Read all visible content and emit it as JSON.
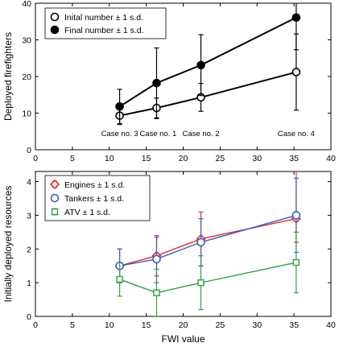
{
  "chart_data": [
    {
      "type": "line",
      "title": "",
      "xlabel": "",
      "ylabel": "Deployed firefighters",
      "xlim": [
        0,
        40
      ],
      "ylim": [
        0,
        40
      ],
      "xticks": [
        0,
        5,
        10,
        15,
        20,
        25,
        30,
        35,
        40
      ],
      "yticks": [
        0,
        10,
        20,
        30,
        40
      ],
      "grid": false,
      "legend_position": "top-left",
      "x": [
        11.4,
        16.4,
        22.4,
        35.3
      ],
      "series": [
        {
          "name": "Inital number ± 1 s.d.",
          "marker": "open-circle",
          "color": "#000000",
          "values": [
            9.3,
            11.4,
            14.3,
            21.2
          ],
          "err_low": [
            6.9,
            8.7,
            10.5,
            10.8
          ],
          "err_high": [
            11.7,
            14.1,
            18.1,
            31.6
          ]
        },
        {
          "name": "Final number ± 1 s.d.",
          "marker": "filled-circle",
          "color": "#000000",
          "values": [
            11.8,
            18.2,
            23.1,
            36.1
          ],
          "err_low": [
            7.1,
            8.5,
            14.8,
            27.3
          ],
          "err_high": [
            16.5,
            27.8,
            31.4,
            45
          ]
        }
      ],
      "annotations": [
        {
          "text": "Case no. 3",
          "x": 11.4,
          "y": 3.7
        },
        {
          "text": "Case no. 1",
          "x": 16.6,
          "y": 3.7
        },
        {
          "text": "Case no. 2",
          "x": 22.4,
          "y": 3.7
        },
        {
          "text": "Case no. 4",
          "x": 35.3,
          "y": 3.7
        }
      ]
    },
    {
      "type": "line",
      "title": "",
      "xlabel": "FWI value",
      "ylabel": "Initially deployed resources",
      "xlim": [
        0,
        40
      ],
      "ylim": [
        0,
        4.3
      ],
      "xticks": [
        0,
        5,
        10,
        15,
        20,
        25,
        30,
        35,
        40
      ],
      "yticks": [
        0,
        1,
        2,
        3,
        4
      ],
      "grid": false,
      "legend_position": "top-left",
      "x": [
        11.4,
        16.4,
        22.4,
        35.3
      ],
      "series": [
        {
          "name": "Engines ± 1 s.d.",
          "marker": "open-diamond",
          "color": "#e03030",
          "values": [
            1.5,
            1.8,
            2.3,
            2.9
          ],
          "err_low": [
            1.0,
            1.2,
            1.5,
            2.2
          ],
          "err_high": [
            2.0,
            2.4,
            3.1,
            4.3
          ]
        },
        {
          "name": "Tankers ± 1 s.d.",
          "marker": "open-circle",
          "color": "#3a5fc0",
          "values": [
            1.5,
            1.7,
            2.2,
            3.0
          ],
          "err_low": [
            1.0,
            1.0,
            1.5,
            1.9
          ],
          "err_high": [
            2.0,
            2.35,
            2.9,
            4.1
          ]
        },
        {
          "name": "ATV ± 1 s.d.",
          "marker": "open-square",
          "color": "#2ea043",
          "values": [
            1.1,
            0.7,
            1.0,
            1.6
          ],
          "err_low": [
            0.6,
            0.0,
            0.2,
            0.7
          ],
          "err_high": [
            1.6,
            1.4,
            1.8,
            2.5
          ]
        }
      ]
    }
  ]
}
